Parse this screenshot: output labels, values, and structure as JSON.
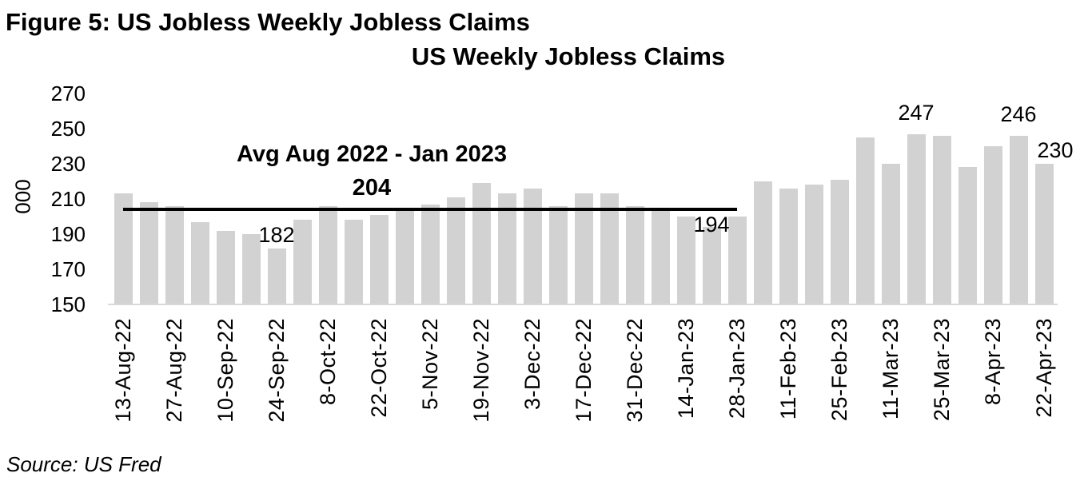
{
  "figure_title": "Figure 5: US Jobless Weekly Jobless Claims",
  "source_note": "Source: US Fred",
  "chart_data": {
    "type": "bar",
    "title": "US Weekly Jobless Claims",
    "ylabel": "000",
    "ylim": [
      150,
      270
    ],
    "ytick_interval": 20,
    "yticks": [
      270,
      250,
      230,
      210,
      190,
      170,
      150
    ],
    "grid": false,
    "legend": false,
    "bar_color": "#d2d2d2",
    "categories": [
      "13-Aug-22",
      "20-Aug-22",
      "27-Aug-22",
      "3-Sep-22",
      "10-Sep-22",
      "17-Sep-22",
      "24-Sep-22",
      "1-Oct-22",
      "8-Oct-22",
      "15-Oct-22",
      "22-Oct-22",
      "29-Oct-22",
      "5-Nov-22",
      "12-Nov-22",
      "19-Nov-22",
      "26-Nov-22",
      "3-Dec-22",
      "10-Dec-22",
      "17-Dec-22",
      "24-Dec-22",
      "31-Dec-22",
      "7-Jan-23",
      "14-Jan-23",
      "21-Jan-23",
      "28-Jan-23",
      "4-Feb-23",
      "11-Feb-23",
      "18-Feb-23",
      "25-Feb-23",
      "4-Mar-23",
      "11-Mar-23",
      "18-Mar-23",
      "25-Mar-23",
      "1-Apr-23",
      "8-Apr-23",
      "15-Apr-23",
      "22-Apr-23"
    ],
    "values": [
      213,
      208,
      206,
      197,
      192,
      190,
      182,
      198,
      206,
      198,
      201,
      203,
      207,
      211,
      219,
      213,
      216,
      206,
      213,
      213,
      206,
      204,
      200,
      194,
      200,
      220,
      216,
      218,
      221,
      245,
      230,
      247,
      246,
      228,
      240,
      246,
      230
    ],
    "x_tick_labels": [
      "13-Aug-22",
      "27-Aug-22",
      "10-Sep-22",
      "24-Sep-22",
      "8-Oct-22",
      "22-Oct-22",
      "5-Nov-22",
      "19-Nov-22",
      "3-Dec-22",
      "17-Dec-22",
      "31-Dec-22",
      "14-Jan-23",
      "28-Jan-23",
      "11-Feb-23",
      "25-Feb-23",
      "11-Mar-23",
      "25-Mar-23",
      "8-Apr-23",
      "22-Apr-23"
    ],
    "x_tick_every": 2,
    "avg_line": {
      "label_line1": "Avg Aug 2022 - Jan 2023",
      "label_line2": "204",
      "value": 204,
      "from_category": "13-Aug-22",
      "to_category": "28-Jan-23"
    },
    "point_labels": [
      {
        "index": 6,
        "category": "24-Sep-22",
        "text": "182"
      },
      {
        "index": 23,
        "category": "21-Jan-23",
        "text": "194"
      },
      {
        "index": 31,
        "category": "18-Mar-23",
        "text": "247"
      },
      {
        "index": 35,
        "category": "15-Apr-23",
        "text": "246"
      },
      {
        "index": 36,
        "category": "22-Apr-23",
        "text": "230"
      }
    ]
  }
}
